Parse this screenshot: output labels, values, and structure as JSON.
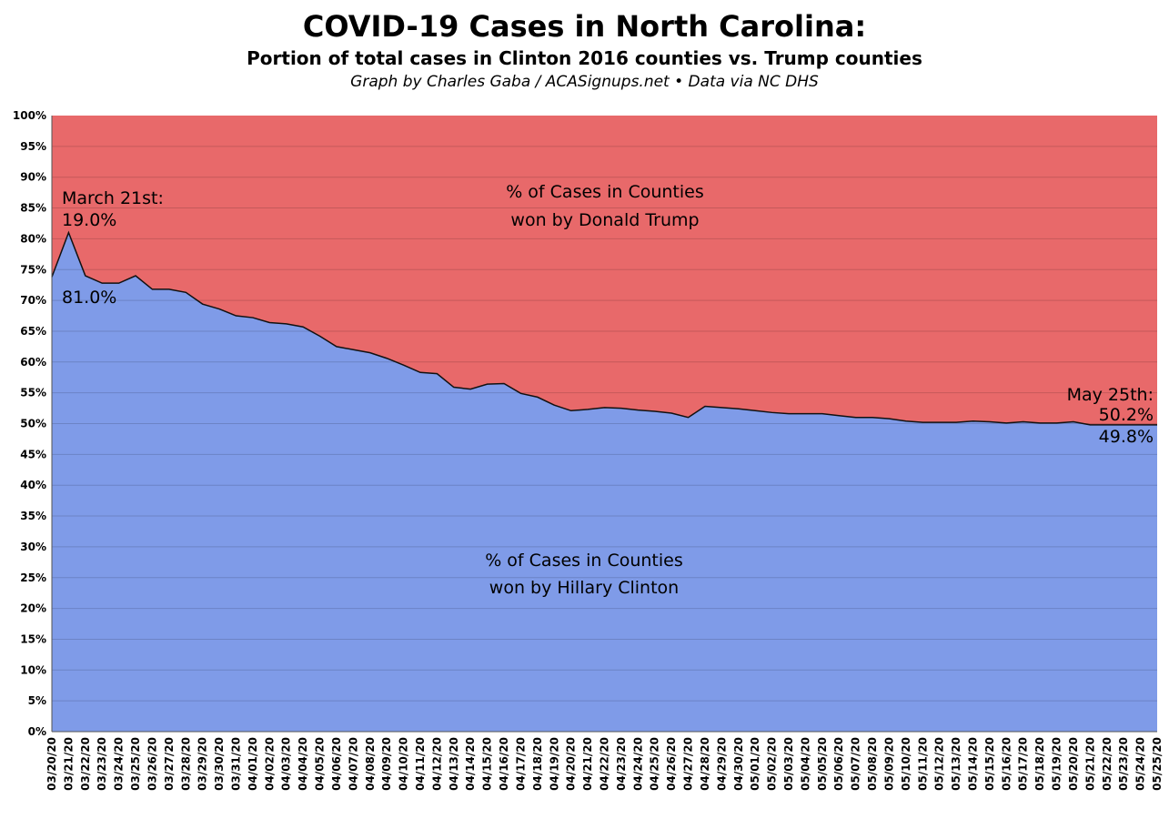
{
  "chart_data": {
    "type": "area",
    "title": "COVID-19 Cases in North Carolina:",
    "subtitle": "Portion of total cases in Clinton 2016 counties vs. Trump counties",
    "credit": "Graph by Charles Gaba / ACASignups.net  •  Data via NC DHS",
    "stacked": true,
    "ylim": [
      0,
      100
    ],
    "yticks": [
      "0%",
      "5%",
      "10%",
      "15%",
      "20%",
      "25%",
      "30%",
      "35%",
      "40%",
      "45%",
      "50%",
      "55%",
      "60%",
      "65%",
      "70%",
      "75%",
      "80%",
      "85%",
      "90%",
      "95%",
      "100%"
    ],
    "grid": true,
    "colors": {
      "clinton": "#7f9be8",
      "trump": "#e8696a",
      "line": "#111111"
    },
    "x": [
      "03/20/20",
      "03/21/20",
      "03/22/20",
      "03/23/20",
      "03/24/20",
      "03/25/20",
      "03/26/20",
      "03/27/20",
      "03/28/20",
      "03/29/20",
      "03/30/20",
      "03/31/20",
      "04/01/20",
      "04/02/20",
      "04/03/20",
      "04/04/20",
      "04/05/20",
      "04/06/20",
      "04/07/20",
      "04/08/20",
      "04/09/20",
      "04/10/20",
      "04/11/20",
      "04/12/20",
      "04/13/20",
      "04/14/20",
      "04/15/20",
      "04/16/20",
      "04/17/20",
      "04/18/20",
      "04/19/20",
      "04/20/20",
      "04/21/20",
      "04/22/20",
      "04/23/20",
      "04/24/20",
      "04/25/20",
      "04/26/20",
      "04/27/20",
      "04/28/20",
      "04/29/20",
      "04/30/20",
      "05/01/20",
      "05/02/20",
      "05/03/20",
      "05/04/20",
      "05/05/20",
      "05/06/20",
      "05/07/20",
      "05/08/20",
      "05/09/20",
      "05/10/20",
      "05/11/20",
      "05/12/20",
      "05/13/20",
      "05/14/20",
      "05/15/20",
      "05/16/20",
      "05/17/20",
      "05/18/20",
      "05/19/20",
      "05/20/20",
      "05/21/20",
      "05/22/20",
      "05/23/20",
      "05/24/20",
      "05/25/20"
    ],
    "series": [
      {
        "name": "% of Cases in Counties won by Hillary Clinton",
        "values": [
          73.8,
          81.0,
          74.0,
          72.8,
          72.8,
          74.0,
          71.8,
          71.8,
          71.3,
          69.4,
          68.6,
          67.5,
          67.2,
          66.4,
          66.2,
          65.7,
          64.2,
          62.5,
          62.0,
          61.5,
          60.6,
          59.5,
          58.3,
          58.1,
          55.9,
          55.6,
          56.4,
          56.5,
          54.9,
          54.3,
          53.0,
          52.1,
          52.3,
          52.6,
          52.5,
          52.2,
          52.0,
          51.7,
          51.0,
          52.8,
          52.6,
          52.4,
          52.1,
          51.8,
          51.6,
          51.6,
          51.6,
          51.3,
          51.0,
          51.0,
          50.8,
          50.4,
          50.2,
          50.2,
          50.2,
          50.4,
          50.3,
          50.1,
          50.3,
          50.1,
          50.1,
          50.3,
          49.8,
          49.8,
          49.8,
          49.8,
          49.8
        ]
      },
      {
        "name": "% of Cases in Counties won by Donald Trump",
        "values": "100 minus Clinton share"
      }
    ],
    "labels": {
      "trump_line1": "% of Cases in Counties",
      "trump_line2": "won by Donald Trump",
      "clinton_line1": "% of Cases in Counties",
      "clinton_line2": "won by Hillary Clinton"
    },
    "annotations": {
      "start_date": "March 21st:",
      "start_trump": "19.0%",
      "start_clinton": "81.0%",
      "end_date": "May 25th:",
      "end_trump": "50.2%",
      "end_clinton": "49.8%"
    }
  }
}
